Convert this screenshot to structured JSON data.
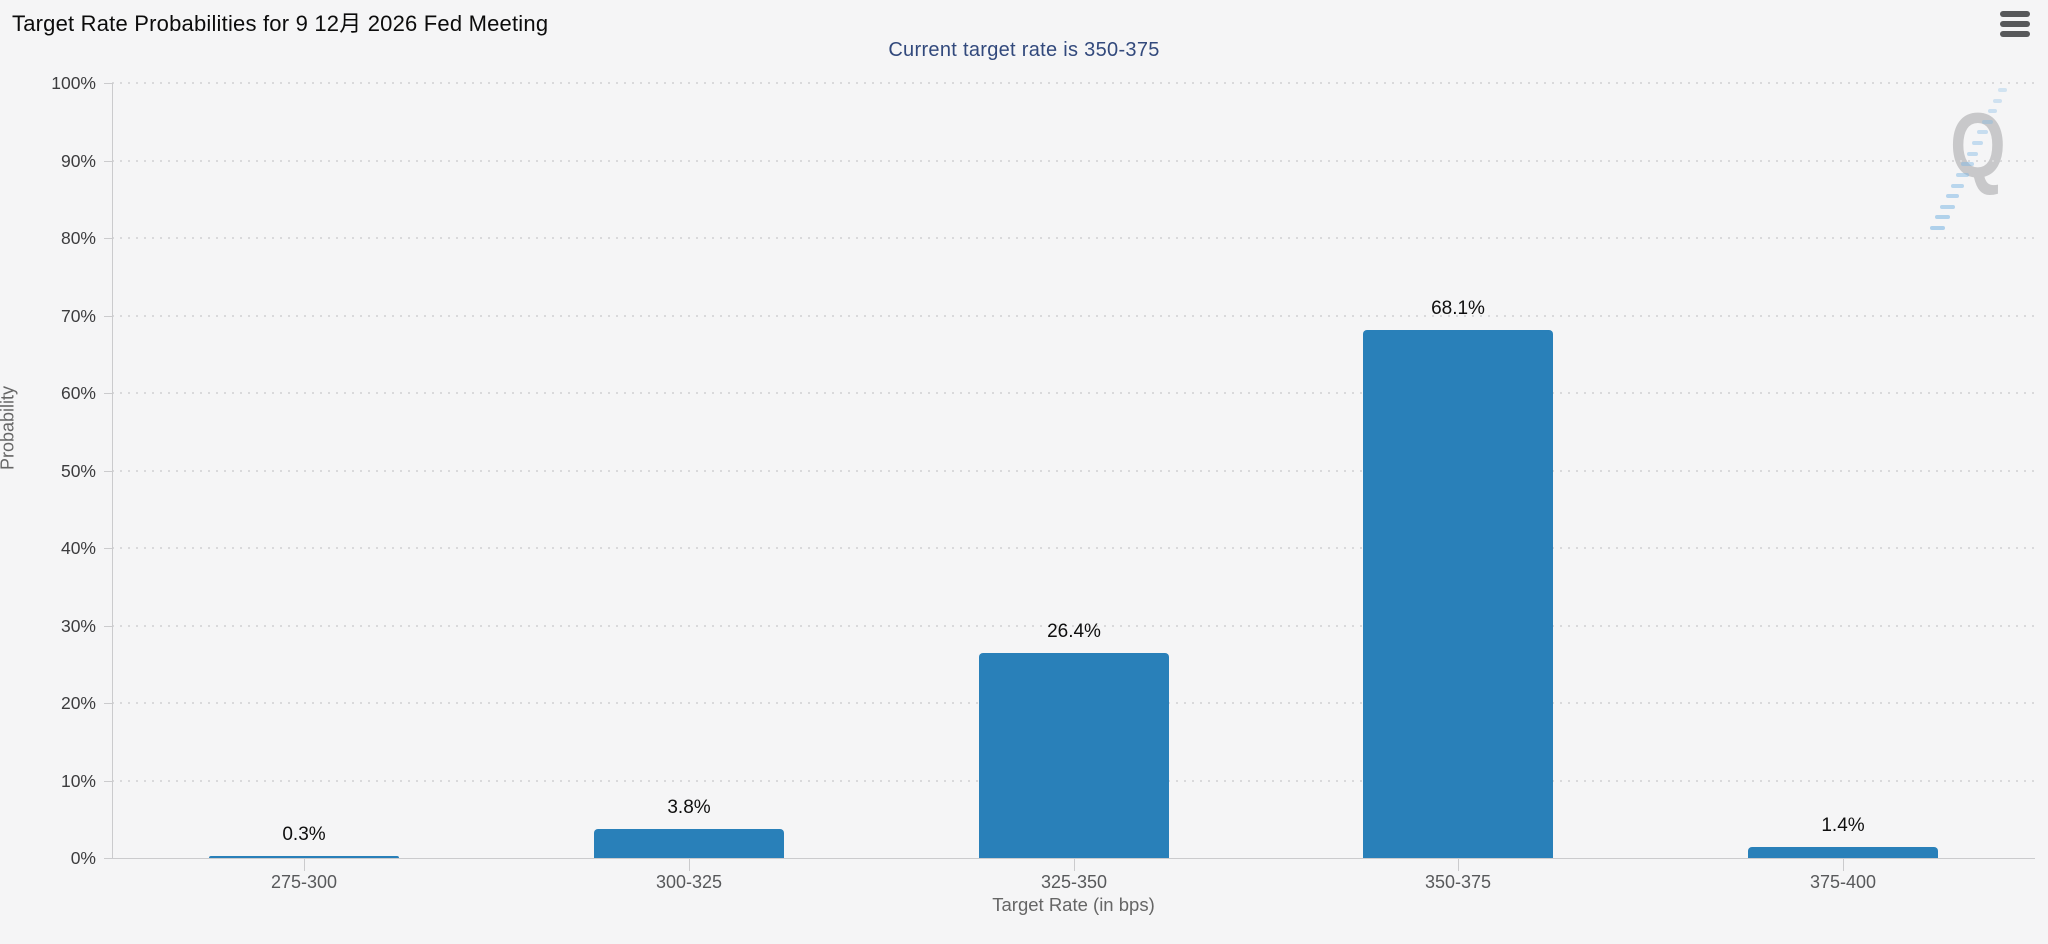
{
  "header": {
    "title": "Target Rate Probabilities for 9 12月 2026 Fed Meeting",
    "subtitle": "Current target rate is 350-375"
  },
  "chart_data": {
    "type": "bar",
    "title": "Target Rate Probabilities for 9 12月 2026 Fed Meeting",
    "subtitle": "Current target rate is 350-375",
    "categories": [
      "275-300",
      "300-325",
      "325-350",
      "350-375",
      "375-400"
    ],
    "values": [
      0.3,
      3.8,
      26.4,
      68.1,
      1.4
    ],
    "value_labels": [
      "0.3%",
      "3.8%",
      "26.4%",
      "68.1%",
      "1.4%"
    ],
    "xlabel": "Target Rate (in bps)",
    "ylabel": "Probability",
    "ylim": [
      0,
      100
    ],
    "ytick_interval": 10,
    "ytick_labels": [
      "0%",
      "10%",
      "20%",
      "30%",
      "40%",
      "50%",
      "60%",
      "70%",
      "80%",
      "90%",
      "100%"
    ],
    "grid": "dotted-horizontal",
    "legend": "none",
    "bar_color": "#2980b9",
    "subtitle_color": "#32497c"
  },
  "watermark": {
    "letter": "Q",
    "dash_color": "#7fb8e4",
    "letter_color": "#c6c6c8"
  },
  "icons": {
    "menu": "hamburger-menu-icon"
  }
}
